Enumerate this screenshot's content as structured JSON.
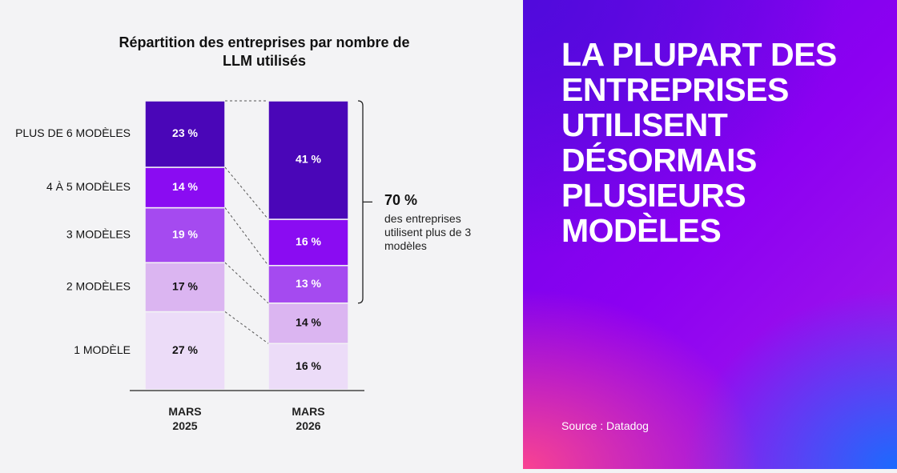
{
  "chart_data": {
    "type": "stacked-bar",
    "title": "Répartition des entreprises par nombre de LLM utilisés",
    "categories": [
      "MARS 2025",
      "MARS 2026"
    ],
    "ylim": [
      0,
      100
    ],
    "series": [
      {
        "name": "1 MODÈLE",
        "color": "#ecdcf8",
        "values": [
          27,
          16
        ],
        "value_labels": [
          "27 %",
          "16 %"
        ]
      },
      {
        "name": "2 MODÈLES",
        "color": "#dbb5f1",
        "values": [
          17,
          14
        ],
        "value_labels": [
          "17 %",
          "14 %"
        ]
      },
      {
        "name": "3 MODÈLES",
        "color": "#a54af0",
        "values": [
          19,
          13
        ],
        "value_labels": [
          "19 %",
          "13 %"
        ]
      },
      {
        "name": "4 À 5 MODÈLES",
        "color": "#8a0cf2",
        "values": [
          14,
          16
        ],
        "value_labels": [
          "14 %",
          "16 %"
        ]
      },
      {
        "name": "PLUS DE 6 MODÈLES",
        "color": "#4a06b8",
        "values": [
          23,
          41
        ],
        "value_labels": [
          "23 %",
          "41 %"
        ]
      }
    ],
    "annotation": {
      "value": 70,
      "value_label": "70 %",
      "text": "des entreprises utilisent plus de 3 modèles"
    }
  },
  "panel": {
    "headline": "LA PLUPART DES ENTREPRISES UTILISENT DÉSORMAIS PLUSIEURS MODÈLES",
    "source": "Source : Datadog"
  }
}
